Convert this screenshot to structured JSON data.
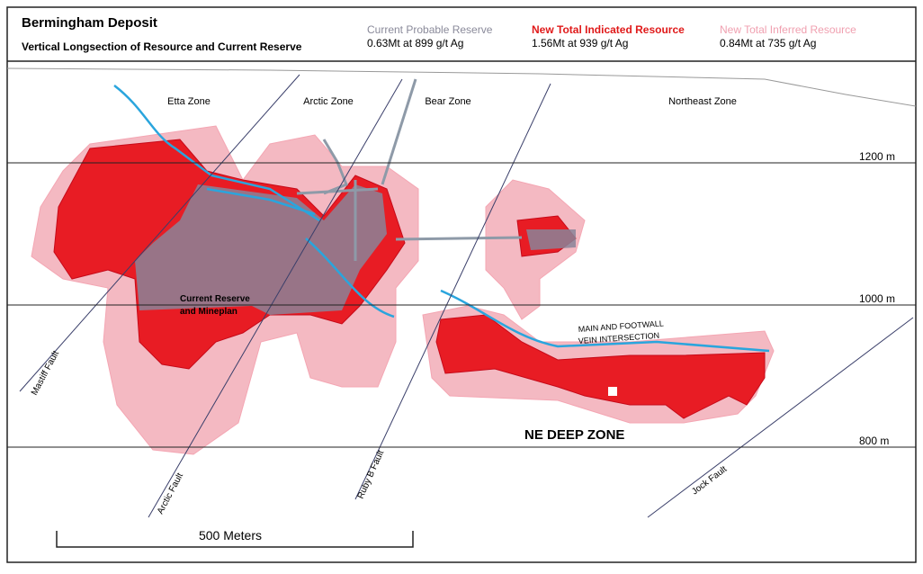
{
  "header": {
    "title": "Bermingham Deposit",
    "subtitle": "Vertical Longsection of Resource and Current Reserve"
  },
  "legend": [
    {
      "name": "Current Probable Reserve",
      "detail": "0.63Mt at 899 g/t Ag"
    },
    {
      "name": "New Total Indicated Resource",
      "detail": "1.56Mt at 939 g/t Ag"
    },
    {
      "name": "New Total Inferred Resource",
      "detail": "0.84Mt at 735 g/t Ag"
    }
  ],
  "zones": [
    "Etta Zone",
    "Arctic Zone",
    "Bear Zone",
    "Northeast Zone"
  ],
  "elevations": [
    "1200 m",
    "1000 m",
    "800 m"
  ],
  "faults": [
    "Mastiff Fault",
    "Arctic Fault",
    "Ruby B Fault",
    "Jock Fault"
  ],
  "annotations": {
    "reserve": [
      "Current Reserve",
      "and Mineplan"
    ],
    "vein": [
      "MAIN AND FOOTWALL",
      "VEIN INTERSECTION"
    ],
    "deep_zone": "NE DEEP ZONE"
  },
  "scale_bar": "500 Meters"
}
